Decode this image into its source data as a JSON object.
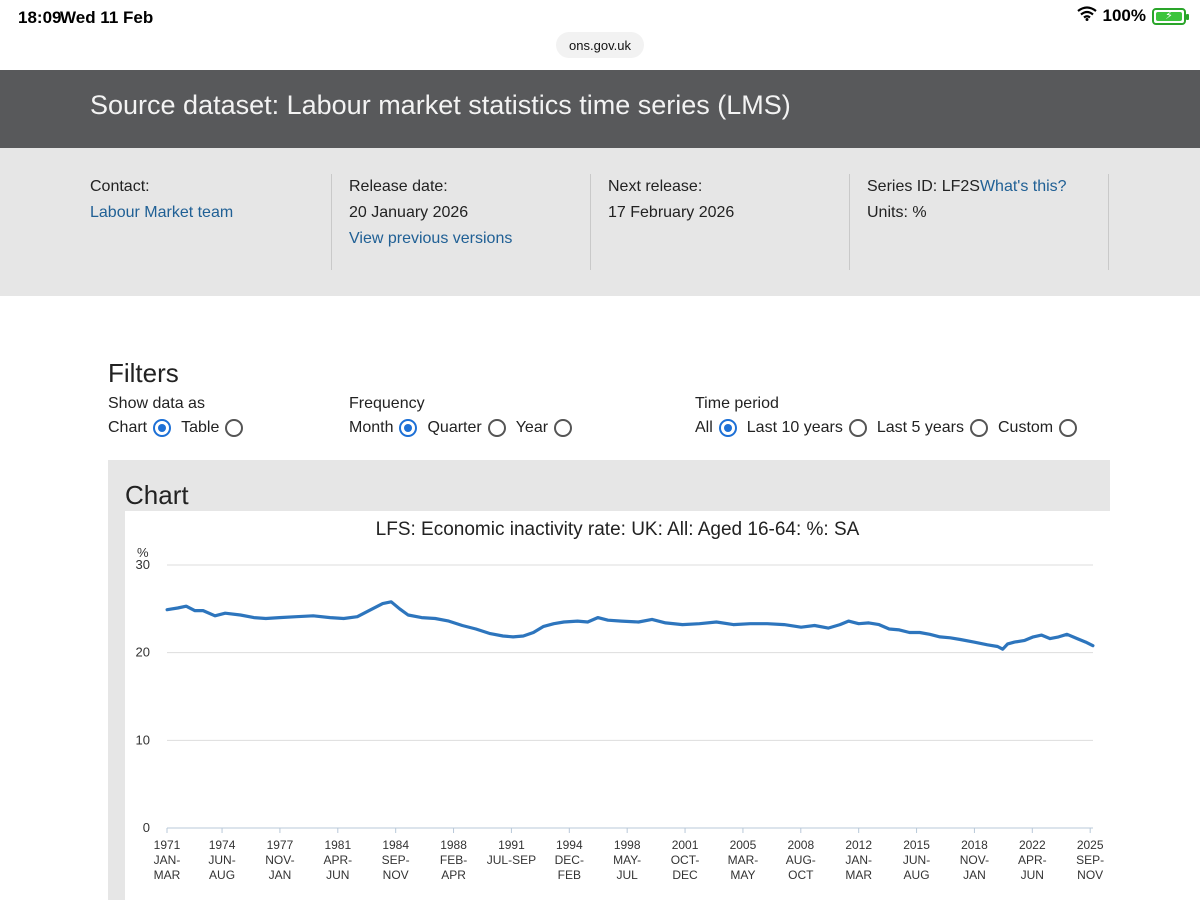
{
  "status_bar": {
    "time": "18:09",
    "date": "Wed 11 Feb",
    "battery": "100%",
    "wifi_icon": "wifi-icon",
    "battery_icon": "battery-charging-icon"
  },
  "browser": {
    "url": "ons.gov.uk"
  },
  "header": {
    "title": "Source dataset: Labour market statistics time series (LMS)"
  },
  "meta": {
    "contact_label": "Contact:",
    "contact_link": "Labour Market team",
    "release_label": "Release date:",
    "release_value": "20 January 2026",
    "previous_link": "View previous versions",
    "next_label": "Next release:",
    "next_value": "17 February 2026",
    "series_label": "Series ID: LF2S",
    "series_link": "What's this?",
    "units": "Units: %"
  },
  "filters": {
    "title": "Filters",
    "show_label": "Show data as",
    "show_options": [
      {
        "label": "Chart",
        "selected": true
      },
      {
        "label": "Table",
        "selected": false
      }
    ],
    "frequency_label": "Frequency",
    "frequency_options": [
      {
        "label": "Month",
        "selected": true
      },
      {
        "label": "Quarter",
        "selected": false
      },
      {
        "label": "Year",
        "selected": false
      }
    ],
    "time_label": "Time period",
    "time_options": [
      {
        "label": "All",
        "selected": true
      },
      {
        "label": "Last 10 years",
        "selected": false
      },
      {
        "label": "Last 5 years",
        "selected": false
      },
      {
        "label": "Custom",
        "selected": false
      }
    ]
  },
  "chart_section": {
    "heading": "Chart"
  },
  "colors": {
    "line": "#2d75bd",
    "grid": "#dddddd",
    "link": "#206095",
    "radio": "#1d70d6"
  },
  "chart_data": {
    "type": "line",
    "title": "LFS: Economic inactivity rate: UK: All: Aged 16-64: %: SA",
    "ylabel": "%",
    "ylim": [
      0,
      30
    ],
    "yticks": [
      0,
      10,
      20,
      30
    ],
    "xlim": [
      1971.167,
      2025.833
    ],
    "xticks": [
      {
        "x": 1971.167,
        "lines": [
          "1971",
          "JAN-",
          "MAR"
        ]
      },
      {
        "x": 1974.417,
        "lines": [
          "1974",
          "JUN-",
          "AUG"
        ]
      },
      {
        "x": 1977.833,
        "lines": [
          "1977",
          "NOV-",
          "JAN"
        ]
      },
      {
        "x": 1981.25,
        "lines": [
          "1981",
          "APR-",
          "JUN"
        ]
      },
      {
        "x": 1984.667,
        "lines": [
          "1984",
          "SEP-",
          "NOV"
        ]
      },
      {
        "x": 1988.083,
        "lines": [
          "1988",
          "FEB-",
          "APR"
        ]
      },
      {
        "x": 1991.5,
        "lines": [
          "1991",
          "JUL-SEP"
        ]
      },
      {
        "x": 1994.917,
        "lines": [
          "1994",
          "DEC-",
          "FEB"
        ]
      },
      {
        "x": 1998.333,
        "lines": [
          "1998",
          "MAY-",
          "JUL"
        ]
      },
      {
        "x": 2001.75,
        "lines": [
          "2001",
          "OCT-",
          "DEC"
        ]
      },
      {
        "x": 2005.167,
        "lines": [
          "2005",
          "MAR-",
          "MAY"
        ]
      },
      {
        "x": 2008.583,
        "lines": [
          "2008",
          "AUG-",
          "OCT"
        ]
      },
      {
        "x": 2012.0,
        "lines": [
          "2012",
          "JAN-",
          "MAR"
        ]
      },
      {
        "x": 2015.417,
        "lines": [
          "2015",
          "JUN-",
          "AUG"
        ]
      },
      {
        "x": 2018.833,
        "lines": [
          "2018",
          "NOV-",
          "JAN"
        ]
      },
      {
        "x": 2022.25,
        "lines": [
          "2022",
          "APR-",
          "JUN"
        ]
      },
      {
        "x": 2025.667,
        "lines": [
          "2025",
          "SEP-",
          "NOV"
        ]
      }
    ],
    "series": [
      {
        "name": "Economic inactivity rate (16-64)",
        "points": [
          [
            1971.17,
            24.9
          ],
          [
            1971.8,
            25.1
          ],
          [
            1972.3,
            25.3
          ],
          [
            1972.8,
            24.8
          ],
          [
            1973.3,
            24.8
          ],
          [
            1974.0,
            24.2
          ],
          [
            1974.6,
            24.5
          ],
          [
            1975.5,
            24.3
          ],
          [
            1976.3,
            24.0
          ],
          [
            1977.0,
            23.9
          ],
          [
            1977.8,
            24.0
          ],
          [
            1978.8,
            24.1
          ],
          [
            1979.8,
            24.2
          ],
          [
            1980.8,
            24.0
          ],
          [
            1981.6,
            23.9
          ],
          [
            1982.4,
            24.1
          ],
          [
            1983.2,
            24.9
          ],
          [
            1983.9,
            25.6
          ],
          [
            1984.4,
            25.8
          ],
          [
            1984.9,
            25.0
          ],
          [
            1985.4,
            24.3
          ],
          [
            1986.2,
            24.0
          ],
          [
            1987.0,
            23.9
          ],
          [
            1987.8,
            23.6
          ],
          [
            1988.6,
            23.1
          ],
          [
            1989.4,
            22.7
          ],
          [
            1990.2,
            22.2
          ],
          [
            1991.0,
            21.9
          ],
          [
            1991.6,
            21.8
          ],
          [
            1992.2,
            21.9
          ],
          [
            1992.8,
            22.3
          ],
          [
            1993.4,
            23.0
          ],
          [
            1994.0,
            23.3
          ],
          [
            1994.6,
            23.5
          ],
          [
            1995.4,
            23.6
          ],
          [
            1996.0,
            23.5
          ],
          [
            1996.6,
            24.0
          ],
          [
            1997.2,
            23.7
          ],
          [
            1998.0,
            23.6
          ],
          [
            1999.0,
            23.5
          ],
          [
            1999.8,
            23.8
          ],
          [
            2000.6,
            23.4
          ],
          [
            2001.6,
            23.2
          ],
          [
            2002.6,
            23.3
          ],
          [
            2003.6,
            23.5
          ],
          [
            2004.6,
            23.2
          ],
          [
            2005.6,
            23.3
          ],
          [
            2006.6,
            23.3
          ],
          [
            2007.6,
            23.2
          ],
          [
            2008.6,
            22.9
          ],
          [
            2009.4,
            23.1
          ],
          [
            2010.2,
            22.8
          ],
          [
            2010.9,
            23.2
          ],
          [
            2011.4,
            23.6
          ],
          [
            2012.0,
            23.3
          ],
          [
            2012.6,
            23.4
          ],
          [
            2013.2,
            23.2
          ],
          [
            2013.8,
            22.7
          ],
          [
            2014.4,
            22.6
          ],
          [
            2015.0,
            22.3
          ],
          [
            2015.6,
            22.3
          ],
          [
            2016.2,
            22.1
          ],
          [
            2016.8,
            21.8
          ],
          [
            2017.4,
            21.7
          ],
          [
            2018.0,
            21.5
          ],
          [
            2018.8,
            21.2
          ],
          [
            2019.6,
            20.9
          ],
          [
            2020.2,
            20.7
          ],
          [
            2020.5,
            20.4
          ],
          [
            2020.8,
            21.0
          ],
          [
            2021.2,
            21.2
          ],
          [
            2021.8,
            21.4
          ],
          [
            2022.3,
            21.8
          ],
          [
            2022.8,
            22.0
          ],
          [
            2023.3,
            21.6
          ],
          [
            2023.8,
            21.8
          ],
          [
            2024.3,
            22.1
          ],
          [
            2024.9,
            21.6
          ],
          [
            2025.4,
            21.2
          ],
          [
            2025.83,
            20.8
          ]
        ]
      }
    ]
  }
}
